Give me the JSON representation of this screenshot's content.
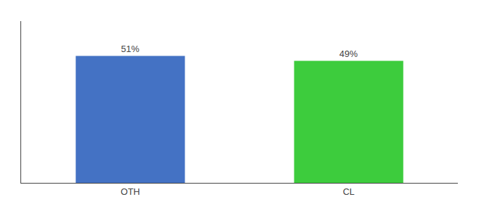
{
  "chart_data": {
    "type": "bar",
    "categories": [
      "OTH",
      "CL"
    ],
    "values": [
      51,
      49
    ],
    "value_labels": [
      "51%",
      "49%"
    ],
    "colors": [
      "#4472c4",
      "#3dcc3d"
    ],
    "ylim": [
      0,
      65
    ],
    "data_labels": true,
    "tick_labels": "x",
    "grid": false
  }
}
